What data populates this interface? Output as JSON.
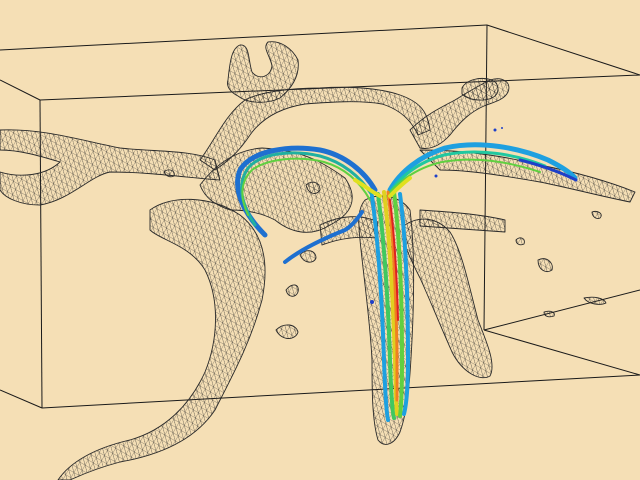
{
  "scene": {
    "background_color": "#f5dfb5",
    "box_color": "#1a1a1a",
    "mesh_color": "#2a2a2a",
    "mesh_fill": "#c9bba0",
    "streamline_colors": [
      "#1e40c8",
      "#1ea0e0",
      "#20c8a0",
      "#60d040",
      "#e0e020",
      "#f08020",
      "#e02020"
    ]
  }
}
